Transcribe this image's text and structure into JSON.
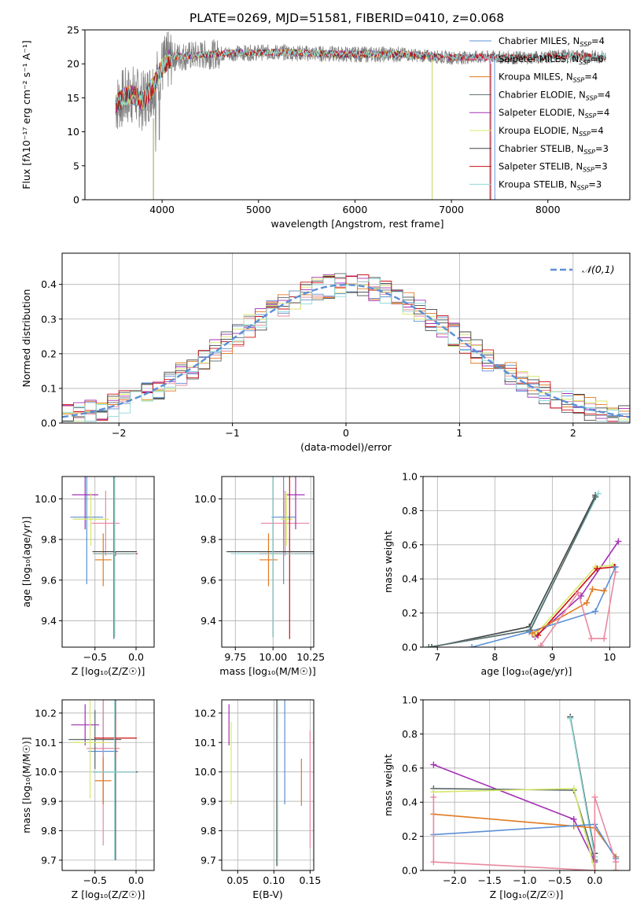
{
  "figure_title": "PLATE=0269, MJD=51581, FIBERID=0410, z=0.068",
  "colors": {
    "chabrier_miles": "#5b8fd6",
    "salpeter_miles": "#e8899f",
    "kroupa_miles": "#e07a22",
    "chabrier_elodie": "#5a6a6a",
    "salpeter_elodie": "#a32fb4",
    "kroupa_elodie": "#d6e86a",
    "chabrier_stelib": "#444444",
    "salpeter_stelib": "#cc1111",
    "kroupa_stelib": "#8fdad8",
    "data": "#808080",
    "normal": "#5b8fd6"
  },
  "chart_data": [
    {
      "id": "spectrum",
      "type": "line",
      "title": "PLATE=0269, MJD=51581, FIBERID=0410, z=0.068",
      "xlabel": "wavelength [Angstrom, rest frame]",
      "ylabel": "Flux [fλ10⁻¹⁷ erg cm⁻² s⁻¹ A⁻¹]",
      "xlim": [
        3200,
        8850
      ],
      "ylim": [
        0,
        25
      ],
      "xticks": [
        "4000",
        "5000",
        "6000",
        "7000",
        "8000"
      ],
      "yticks": [
        "0",
        "5",
        "10",
        "15",
        "20",
        "25"
      ],
      "legend": [
        "Chabrier MILES, N_SSP=4",
        "Salpeter MILES, N_SSP=6",
        "Kroupa MILES, N_SSP=4",
        "Chabrier ELODIE, N_SSP=4",
        "Salpeter ELODIE, N_SSP=4",
        "Kroupa ELODIE, N_SSP=4",
        "Chabrier STELIB, N_SSP=3",
        "Salpeter STELIB, N_SSP=3",
        "Kroupa STELIB, N_SSP=3"
      ],
      "legend_display": [
        {
          "pre": "Chabrier MILES, N",
          "sub": "SSP",
          "post": "=4"
        },
        {
          "pre": "Salpeter MILES, N",
          "sub": "SSP",
          "post": "=6"
        },
        {
          "pre": "Kroupa MILES, N",
          "sub": "SSP",
          "post": "=4"
        },
        {
          "pre": "Chabrier ELODIE, N",
          "sub": "SSP",
          "post": "=4"
        },
        {
          "pre": "Salpeter ELODIE, N",
          "sub": "SSP",
          "post": "=4"
        },
        {
          "pre": "Kroupa ELODIE, N",
          "sub": "SSP",
          "post": "=4"
        },
        {
          "pre": "Chabrier STELIB, N",
          "sub": "SSP",
          "post": "=3"
        },
        {
          "pre": "Salpeter STELIB, N",
          "sub": "SSP",
          "post": "=3"
        },
        {
          "pre": "Kroupa STELIB, N",
          "sub": "SSP",
          "post": "=3"
        }
      ],
      "legend_placement": "top-right",
      "continuum": {
        "x": [
          3520,
          3600,
          3700,
          3800,
          3900,
          4000,
          4100,
          4300,
          4500,
          4800,
          5200,
          5600,
          6000,
          6500,
          7000,
          7400,
          7800,
          8200,
          8600
        ],
        "y": [
          14,
          15,
          15.5,
          14.5,
          16.5,
          19.5,
          21,
          21.2,
          21.4,
          21.6,
          21.7,
          21.5,
          21.4,
          21.4,
          20.9,
          21.0,
          20.9,
          21.2,
          21.0
        ]
      },
      "data_range": [
        3520,
        8600
      ],
      "model_ranges": [
        [
          3520,
          7450
        ],
        [
          3520,
          7400
        ],
        [
          3520,
          7400
        ],
        [
          3520,
          6800
        ],
        [
          3520,
          7400
        ],
        [
          3520,
          6800
        ],
        [
          3520,
          8600
        ],
        [
          3520,
          8600
        ],
        [
          3520,
          8600
        ]
      ]
    },
    {
      "id": "residuals",
      "type": "line",
      "xlabel": "(data-model)/error",
      "ylabel": "Normed distribution",
      "xlim": [
        -2.5,
        2.5
      ],
      "ylim": [
        0,
        0.49
      ],
      "xticks": [
        "−2",
        "−1",
        "0",
        "1",
        "2"
      ],
      "yticks": [
        "0.0",
        "0.1",
        "0.2",
        "0.3",
        "0.4"
      ],
      "legend": [
        "𝒩(0,1)"
      ],
      "legend_placement": "top-right",
      "bin_width": 0.1
    },
    {
      "id": "age_vs_Z",
      "type": "scatter",
      "xlabel": "Z [log₁₀(Z/Z☉)]",
      "ylabel": "age  [log₁₀(age/yr)]",
      "xlim": [
        -0.9,
        0.22
      ],
      "ylim": [
        9.27,
        10.11
      ],
      "xticks": [
        "−0.5",
        "0.0"
      ],
      "yticks": [
        "9.4",
        "9.6",
        "9.8",
        "10.0"
      ],
      "points": [
        {
          "c": "chabrier_miles",
          "x": -0.6,
          "xe": 0.2,
          "y": 9.91,
          "ye": 0.33
        },
        {
          "c": "salpeter_miles",
          "x": -0.37,
          "xe": 0.17,
          "y": 9.88,
          "ye": 0.16
        },
        {
          "c": "kroupa_miles",
          "x": -0.4,
          "xe": 0.1,
          "y": 9.7,
          "ye": 0.13
        },
        {
          "c": "chabrier_elodie",
          "x": -0.27,
          "xe": 0.25,
          "y": 9.73,
          "ye": 0.42
        },
        {
          "c": "salpeter_elodie",
          "x": -0.62,
          "xe": 0.16,
          "y": 10.02,
          "ye": 0.17
        },
        {
          "c": "kroupa_elodie",
          "x": -0.55,
          "xe": 0.22,
          "y": 9.9,
          "ye": 0.13
        },
        {
          "c": "chabrier_stelib",
          "x": -0.26,
          "xe": 0.27,
          "y": 9.74,
          "ye": 0.42
        },
        {
          "c": "salpeter_stelib",
          "x": -0.25,
          "xe": 0.27,
          "y": 9.73,
          "ye": 0.01
        },
        {
          "c": "kroupa_stelib",
          "x": -0.26,
          "xe": 0.26,
          "y": 9.73,
          "ye": 0.41
        }
      ]
    },
    {
      "id": "age_vs_mass",
      "type": "scatter",
      "xlabel": "mass [log₁₀(M/M☉)]",
      "ylabel": "",
      "xlim": [
        9.66,
        10.27
      ],
      "ylim": [
        9.27,
        10.11
      ],
      "xticks": [
        "9.75",
        "10.00",
        "10.25"
      ],
      "yticks": [
        "9.4",
        "9.6",
        "9.8",
        "10.0"
      ],
      "points": [
        {
          "c": "chabrier_miles",
          "x": 10.07,
          "xe": 0.08,
          "y": 9.91,
          "ye": 0.33
        },
        {
          "c": "salpeter_miles",
          "x": 10.08,
          "xe": 0.16,
          "y": 9.88,
          "ye": 0.16
        },
        {
          "c": "kroupa_miles",
          "x": 9.97,
          "xe": 0.06,
          "y": 9.7,
          "ye": 0.13
        },
        {
          "c": "chabrier_elodie",
          "x": 10.0,
          "xe": 0.31,
          "y": 9.74,
          "ye": 0.42
        },
        {
          "c": "salpeter_elodie",
          "x": 10.15,
          "xe": 0.06,
          "y": 10.02,
          "ye": 0.17
        },
        {
          "c": "kroupa_elodie",
          "x": 10.09,
          "xe": 0.04,
          "y": 9.9,
          "ye": 0.13
        },
        {
          "c": "chabrier_stelib",
          "x": 10.0,
          "xe": 0.3,
          "y": 9.74,
          "ye": 0.42
        },
        {
          "c": "salpeter_stelib",
          "x": 10.11,
          "xe": 0.2,
          "y": 9.73,
          "ye": 0.42
        },
        {
          "c": "kroupa_stelib",
          "x": 10.0,
          "xe": 0.28,
          "y": 9.73,
          "ye": 0.41
        }
      ]
    },
    {
      "id": "mass_weight_vs_age",
      "type": "line",
      "xlabel": "age  [log₁₀(age/yr)]",
      "ylabel": "mass weight",
      "xlim": [
        6.75,
        10.35
      ],
      "ylim": [
        0,
        1.0
      ],
      "xticks": [
        "7",
        "8",
        "9",
        "10"
      ],
      "yticks": [
        "0.0",
        "0.2",
        "0.4",
        "0.6",
        "0.8",
        "1.0"
      ],
      "series": [
        {
          "c": "chabrier_stelib",
          "x": [
            6.9,
            8.6,
            9.75
          ],
          "y": [
            0.0,
            0.12,
            0.89
          ]
        },
        {
          "c": "kroupa_stelib",
          "x": [
            6.85,
            8.6,
            9.8
          ],
          "y": [
            0.0,
            0.1,
            0.9
          ]
        },
        {
          "c": "chabrier_elodie",
          "x": [
            6.85,
            8.62,
            9.75
          ],
          "y": [
            0.0,
            0.1,
            0.88
          ]
        },
        {
          "c": "salpeter_elodie",
          "x": [
            8.7,
            9.5,
            10.15
          ],
          "y": [
            0.06,
            0.3,
            0.62
          ]
        },
        {
          "c": "kroupa_elodie",
          "x": [
            8.7,
            9.75,
            10.05
          ],
          "y": [
            0.07,
            0.47,
            0.48
          ]
        },
        {
          "c": "salpeter_stelib",
          "x": [
            8.75,
            9.78,
            10.08
          ],
          "y": [
            0.07,
            0.46,
            0.47
          ]
        },
        {
          "c": "chabrier_miles",
          "x": [
            7.6,
            8.6,
            9.75,
            10.1
          ],
          "y": [
            0.0,
            0.09,
            0.21,
            0.47
          ]
        },
        {
          "c": "kroupa_miles",
          "x": [
            8.65,
            9.6,
            9.7,
            9.9
          ],
          "y": [
            0.08,
            0.26,
            0.34,
            0.33
          ]
        },
        {
          "c": "salpeter_miles",
          "x": [
            8.8,
            9.45,
            9.68,
            9.9,
            10.1
          ],
          "y": [
            0.01,
            0.32,
            0.05,
            0.05,
            0.44
          ]
        }
      ]
    },
    {
      "id": "mass_vs_Z",
      "type": "scatter",
      "xlabel": "Z [log₁₀(Z/Z☉)]",
      "ylabel": "mass [log₁₀(M/M☉)]",
      "xlim": [
        -0.9,
        0.22
      ],
      "ylim": [
        9.665,
        10.245
      ],
      "xticks": [
        "−0.5",
        "0.0"
      ],
      "yticks": [
        "9.7",
        "9.8",
        "9.9",
        "10.0",
        "10.1",
        "10.2"
      ],
      "points": [
        {
          "c": "chabrier_miles",
          "x": -0.4,
          "xe": 0.18,
          "y": 10.07,
          "ye": 0.18
        },
        {
          "c": "salpeter_miles",
          "x": -0.4,
          "xe": 0.2,
          "y": 10.08,
          "ye": 0.33
        },
        {
          "c": "kroupa_miles",
          "x": -0.4,
          "xe": 0.1,
          "y": 9.97,
          "ye": 0.08
        },
        {
          "c": "chabrier_elodie",
          "x": -0.5,
          "xe": 0.32,
          "y": 10.11,
          "ye": 0.1
        },
        {
          "c": "salpeter_elodie",
          "x": -0.62,
          "xe": 0.17,
          "y": 10.16,
          "ye": 0.07
        },
        {
          "c": "kroupa_elodie",
          "x": -0.56,
          "xe": 0.22,
          "y": 10.1,
          "ye": 0.19
        },
        {
          "c": "chabrier_stelib",
          "x": -0.25,
          "xe": 0.27,
          "y": 10.0,
          "ye": 0.3
        },
        {
          "c": "salpeter_stelib",
          "x": -0.25,
          "xe": 0.26,
          "y": 10.115,
          "ye": 0.07
        },
        {
          "c": "kroupa_stelib",
          "x": -0.26,
          "xe": 0.26,
          "y": 10.0,
          "ye": 0.3
        }
      ]
    },
    {
      "id": "mass_vs_ebv",
      "type": "scatter",
      "xlabel": "E(B-V)",
      "ylabel": "",
      "xlim": [
        0.028,
        0.155
      ],
      "ylim": [
        9.665,
        10.245
      ],
      "xticks": [
        "0.05",
        "0.10",
        "0.15"
      ],
      "yticks": [
        "9.7",
        "9.8",
        "9.9",
        "10.0",
        "10.1",
        "10.2"
      ],
      "points": [
        {
          "c": "chabrier_miles",
          "x": 0.115,
          "y": 10.07,
          "ye": 0.18
        },
        {
          "c": "salpeter_miles",
          "x": 0.15,
          "y": 9.94,
          "ye": 0.2
        },
        {
          "c": "kroupa_miles",
          "x": 0.138,
          "y": 9.965,
          "ye": 0.08
        },
        {
          "c": "chabrier_elodie",
          "x": 0.105,
          "y": 9.98,
          "ye": 0.3
        },
        {
          "c": "salpeter_elodie",
          "x": 0.038,
          "y": 10.16,
          "ye": 0.07
        },
        {
          "c": "kroupa_elodie",
          "x": 0.041,
          "y": 10.03,
          "ye": 0.14
        },
        {
          "c": "chabrier_stelib",
          "x": 0.104,
          "y": 9.98,
          "ye": 0.3
        },
        {
          "c": "salpeter_stelib",
          "x": 0.105,
          "y": 10.18,
          "ye": 0.04
        },
        {
          "c": "kroupa_stelib",
          "x": 0.105,
          "y": 9.98,
          "ye": 0.3
        }
      ]
    },
    {
      "id": "mass_weight_vs_Z",
      "type": "line",
      "xlabel": "Z [log₁₀(Z/Z☉)]",
      "ylabel": "mass weight",
      "xlim": [
        -2.45,
        0.5
      ],
      "ylim": [
        0,
        1.0
      ],
      "xticks": [
        "−2.0",
        "−1.5",
        "−1.0",
        "−0.5",
        "0.0"
      ],
      "yticks": [
        "0.0",
        "0.2",
        "0.4",
        "0.6",
        "0.8",
        "1.0"
      ],
      "series": [
        {
          "c": "chabrier_stelib",
          "x": [
            -0.35,
            0.0,
            0.0
          ],
          "y": [
            0.9,
            0.1,
            0.0
          ]
        },
        {
          "c": "kroupa_stelib",
          "x": [
            -0.35,
            0.0,
            0.0
          ],
          "y": [
            0.89,
            0.08,
            0.0
          ]
        },
        {
          "c": "salpeter_elodie",
          "x": [
            -2.3,
            -0.3,
            0.0
          ],
          "y": [
            0.62,
            0.3,
            0.05
          ]
        },
        {
          "c": "chabrier_elodie",
          "x": [
            -2.3,
            -0.3,
            0.0
          ],
          "y": [
            0.48,
            0.47,
            0.06
          ]
        },
        {
          "c": "kroupa_elodie",
          "x": [
            -2.3,
            -0.3,
            0.0
          ],
          "y": [
            0.46,
            0.48,
            0.0
          ]
        },
        {
          "c": "kroupa_miles",
          "x": [
            -2.3,
            -0.3,
            0.0,
            0.3,
            0.3
          ],
          "y": [
            0.33,
            0.26,
            0.25,
            0.08,
            0.0
          ]
        },
        {
          "c": "chabrier_miles",
          "x": [
            -2.3,
            0.0,
            0.3
          ],
          "y": [
            0.21,
            0.27,
            0.07
          ]
        },
        {
          "c": "salpeter_miles",
          "x": [
            -2.3,
            -2.3,
            0.0,
            0.0,
            0.3,
            0.3
          ],
          "y": [
            0.43,
            0.05,
            0.0,
            0.43,
            0.05,
            0.0
          ]
        }
      ]
    }
  ],
  "plot_order": [
    "chabrier_miles",
    "salpeter_miles",
    "kroupa_miles",
    "chabrier_elodie",
    "salpeter_elodie",
    "kroupa_elodie",
    "chabrier_stelib",
    "salpeter_stelib",
    "kroupa_stelib"
  ]
}
